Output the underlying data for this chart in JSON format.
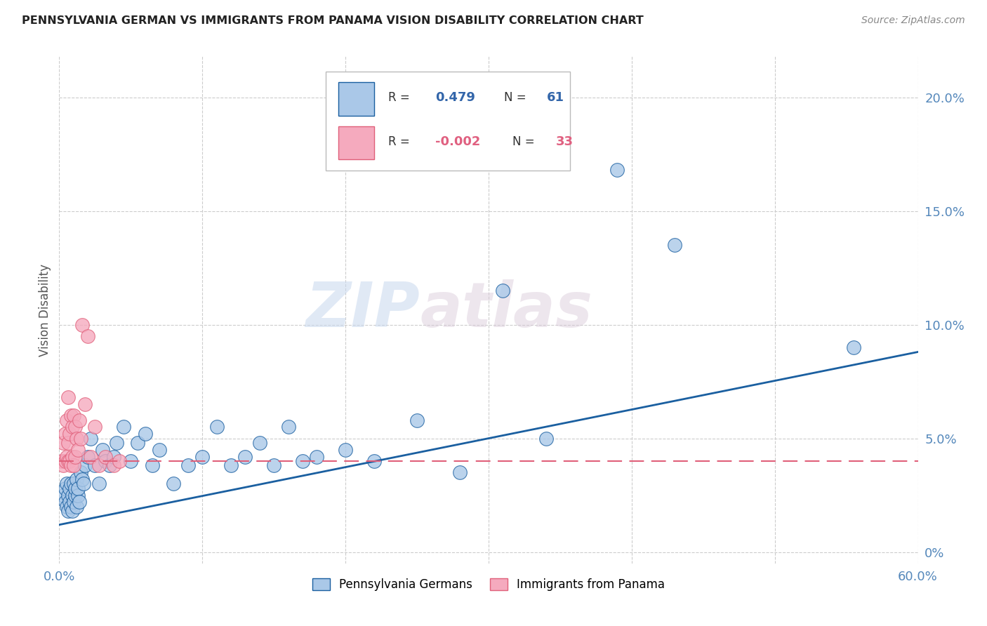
{
  "title": "PENNSYLVANIA GERMAN VS IMMIGRANTS FROM PANAMA VISION DISABILITY CORRELATION CHART",
  "source": "Source: ZipAtlas.com",
  "ylabel": "Vision Disability",
  "ylabel_right_ticks": [
    "0%",
    "5.0%",
    "10.0%",
    "15.0%",
    "20.0%"
  ],
  "ylabel_right_vals": [
    0.0,
    0.05,
    0.1,
    0.15,
    0.2
  ],
  "xlim": [
    0.0,
    0.6
  ],
  "ylim": [
    -0.005,
    0.218
  ],
  "legend_blue_r": "0.479",
  "legend_blue_n": "61",
  "legend_pink_r": "-0.002",
  "legend_pink_n": "33",
  "blue_color": "#aac8e8",
  "blue_line_color": "#1a5fa0",
  "pink_color": "#f5aabe",
  "pink_line_color": "#e0607a",
  "watermark_zip": "ZIP",
  "watermark_atlas": "atlas",
  "grid_color": "#cccccc",
  "background_color": "#ffffff",
  "blue_line_start_y": 0.012,
  "blue_line_end_y": 0.088,
  "pink_line_y": 0.04,
  "blue_scatter_x": [
    0.003,
    0.004,
    0.004,
    0.005,
    0.005,
    0.006,
    0.006,
    0.007,
    0.007,
    0.008,
    0.008,
    0.009,
    0.009,
    0.01,
    0.01,
    0.011,
    0.011,
    0.012,
    0.012,
    0.013,
    0.013,
    0.014,
    0.015,
    0.016,
    0.017,
    0.018,
    0.02,
    0.022,
    0.025,
    0.028,
    0.03,
    0.032,
    0.035,
    0.038,
    0.04,
    0.045,
    0.05,
    0.055,
    0.06,
    0.065,
    0.07,
    0.08,
    0.09,
    0.1,
    0.11,
    0.12,
    0.13,
    0.14,
    0.15,
    0.16,
    0.17,
    0.18,
    0.2,
    0.22,
    0.25,
    0.28,
    0.31,
    0.34,
    0.39,
    0.43,
    0.555
  ],
  "blue_scatter_y": [
    0.025,
    0.022,
    0.028,
    0.02,
    0.03,
    0.018,
    0.025,
    0.022,
    0.028,
    0.02,
    0.03,
    0.025,
    0.018,
    0.03,
    0.022,
    0.025,
    0.028,
    0.02,
    0.032,
    0.025,
    0.028,
    0.022,
    0.035,
    0.032,
    0.03,
    0.038,
    0.042,
    0.05,
    0.038,
    0.03,
    0.045,
    0.04,
    0.038,
    0.042,
    0.048,
    0.055,
    0.04,
    0.048,
    0.052,
    0.038,
    0.045,
    0.03,
    0.038,
    0.042,
    0.055,
    0.038,
    0.042,
    0.048,
    0.038,
    0.055,
    0.04,
    0.042,
    0.045,
    0.04,
    0.058,
    0.035,
    0.115,
    0.05,
    0.168,
    0.135,
    0.09
  ],
  "pink_scatter_x": [
    0.002,
    0.003,
    0.003,
    0.004,
    0.004,
    0.005,
    0.005,
    0.006,
    0.006,
    0.006,
    0.007,
    0.007,
    0.008,
    0.008,
    0.009,
    0.009,
    0.01,
    0.01,
    0.011,
    0.011,
    0.012,
    0.013,
    0.014,
    0.015,
    0.016,
    0.018,
    0.02,
    0.022,
    0.025,
    0.028,
    0.032,
    0.038,
    0.042
  ],
  "pink_scatter_y": [
    0.04,
    0.038,
    0.048,
    0.04,
    0.052,
    0.042,
    0.058,
    0.04,
    0.048,
    0.068,
    0.04,
    0.052,
    0.038,
    0.06,
    0.042,
    0.055,
    0.038,
    0.06,
    0.055,
    0.042,
    0.05,
    0.045,
    0.058,
    0.05,
    0.1,
    0.065,
    0.095,
    0.042,
    0.055,
    0.038,
    0.042,
    0.038,
    0.04
  ],
  "x_grid_vals": [
    0.0,
    0.1,
    0.2,
    0.3,
    0.4,
    0.5,
    0.6
  ]
}
